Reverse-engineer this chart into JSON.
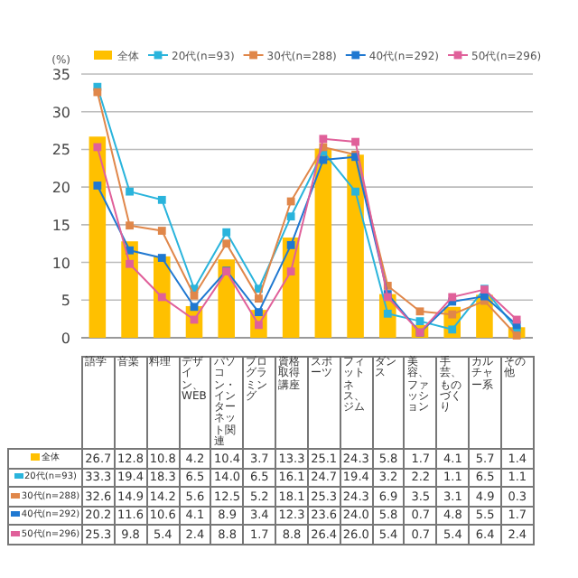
{
  "chart_data": {
    "type": "bar",
    "ylabel": "(%)",
    "categories": [
      "語学",
      "音楽",
      "料理",
      "デザイン、WEB",
      "パソコン・インターネット関連",
      "プログラミング",
      "資格取得講座",
      "スポーツ",
      "フィットネス、ジム",
      "ダンス",
      "美容、ファッション",
      "手芸、ものづくり",
      "カルチャー系",
      "その他"
    ],
    "series": [
      {
        "name": "全体",
        "color": "#ffc000",
        "values": [
          26.7,
          12.8,
          10.8,
          4.2,
          10.4,
          3.7,
          13.3,
          25.1,
          24.3,
          5.8,
          1.7,
          4.1,
          5.7,
          1.4
        ],
        "value_labels": [
          "26.7",
          "12.8",
          "10.8",
          "4.2",
          "10.4",
          "3.7",
          "13.3",
          "25.1",
          "24.3",
          "5.8",
          "1.7",
          "4.1",
          "5.7",
          "1.4"
        ]
      },
      {
        "name": "20代(n=93)",
        "type": "line",
        "color": "#2ab4dc",
        "values": [
          33.3,
          19.4,
          18.3,
          6.5,
          14.0,
          6.5,
          16.1,
          24.7,
          19.4,
          3.2,
          2.2,
          1.1,
          6.5,
          1.1
        ],
        "value_labels": [
          "33.3",
          "19.4",
          "18.3",
          "6.5",
          "14.0",
          "6.5",
          "16.1",
          "24.7",
          "19.4",
          "3.2",
          "2.2",
          "1.1",
          "6.5",
          "1.1"
        ]
      },
      {
        "name": "30代(n=288)",
        "type": "line",
        "color": "#e0874a",
        "values": [
          32.6,
          14.9,
          14.2,
          5.6,
          12.5,
          5.2,
          18.1,
          25.3,
          24.3,
          6.9,
          3.5,
          3.1,
          4.9,
          0.3
        ],
        "value_labels": [
          "32.6",
          "14.9",
          "14.2",
          "5.6",
          "12.5",
          "5.2",
          "18.1",
          "25.3",
          "24.3",
          "6.9",
          "3.5",
          "3.1",
          "4.9",
          "0.3"
        ]
      },
      {
        "name": "40代(n=292)",
        "type": "line",
        "color": "#1f78d1",
        "values": [
          20.2,
          11.6,
          10.6,
          4.1,
          8.9,
          3.4,
          12.3,
          23.6,
          24.0,
          5.8,
          0.7,
          4.8,
          5.5,
          1.7
        ],
        "value_labels": [
          "20.2",
          "11.6",
          "10.6",
          "4.1",
          "8.9",
          "3.4",
          "12.3",
          "23.6",
          "24.0",
          "5.8",
          "0.7",
          "4.8",
          "5.5",
          "1.7"
        ]
      },
      {
        "name": "50代(n=296)",
        "type": "line",
        "color": "#e0609a",
        "values": [
          25.3,
          9.8,
          5.4,
          2.4,
          8.8,
          1.7,
          8.8,
          26.4,
          26.0,
          5.4,
          0.7,
          5.4,
          6.4,
          2.4
        ],
        "value_labels": [
          "25.3",
          "9.8",
          "5.4",
          "2.4",
          "8.8",
          "1.7",
          "8.8",
          "26.4",
          "26.0",
          "5.4",
          "0.7",
          "5.4",
          "6.4",
          "2.4"
        ]
      }
    ],
    "ylim": [
      0,
      35
    ],
    "yticks": [
      0,
      5,
      10,
      15,
      20,
      25,
      30,
      35
    ],
    "grid": "y",
    "legend": "top",
    "marker": "square"
  }
}
